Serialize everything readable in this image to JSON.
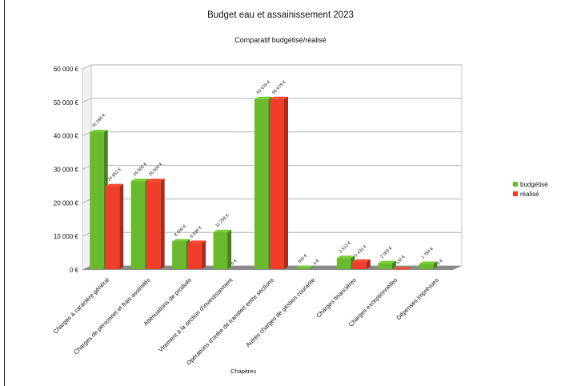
{
  "chart_data": {
    "type": "bar",
    "title": "Budget eau et assainissement 2023",
    "subtitle": "Comparatif budgétisé/réalisé",
    "xlabel": "Chapitres",
    "ylabel": "",
    "ylim": [
      0,
      60000
    ],
    "yticks": [
      "0 €",
      "10 000 €",
      "20 000 €",
      "30 000 €",
      "40 000 €",
      "50 000 €",
      "60 000 €"
    ],
    "grid": true,
    "legend_position": "right",
    "categories": [
      "Charges à caractère général",
      "Charges de personnel et frais assimilés",
      "Atténuations de produits",
      "Virement à la section d'investissement",
      "Opérations d'ordre de transfert entre sections",
      "Autres charges de gestion courante",
      "Charges financières",
      "Charges exceptionnelles",
      "Dépenses imprévues"
    ],
    "series": [
      {
        "name": "budgétisé",
        "color": "#6ab92f",
        "values": [
          41090,
          26500,
          8500,
          11259,
          50979,
          500,
          3512,
          2000,
          1784
        ],
        "labels": [
          "41 090 €",
          "26 500 €",
          "8 500 €",
          "11 259 €",
          "50 979 €",
          "500 €",
          "3 512 €",
          "2 000 €",
          "1 784 €"
        ]
      },
      {
        "name": "réalisé",
        "color": "#ef3f2a",
        "values": [
          24952,
          26500,
          8039,
          0,
          50979,
          0,
          2431,
          132,
          0
        ],
        "labels": [
          "24 952 €",
          "26 500 €",
          "8 039 €",
          "0 €",
          "50 979 €",
          "0 €",
          "2 431 €",
          "132 €",
          "0 €"
        ]
      }
    ]
  }
}
